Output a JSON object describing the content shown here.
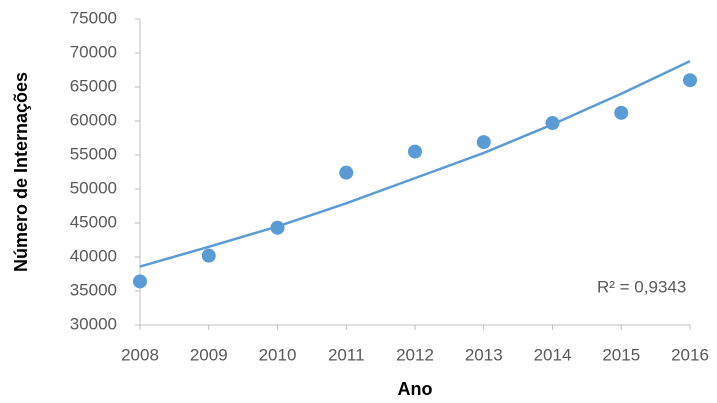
{
  "chart_data": {
    "type": "scatter",
    "x_label": "Ano",
    "y_label": "Número de Internações",
    "x": [
      2008,
      2009,
      2010,
      2011,
      2012,
      2013,
      2014,
      2015,
      2016
    ],
    "values": [
      36400,
      40200,
      44300,
      52400,
      55500,
      56900,
      59700,
      61200,
      66000
    ],
    "color": "#5b9bd5",
    "trendline": {
      "values": [
        38600,
        41500,
        44500,
        47900,
        51600,
        55300,
        59500,
        64000,
        68800
      ],
      "color": "#5b9bd5"
    },
    "annotation": "R² = 0,9343",
    "xlim": [
      2008,
      2016
    ],
    "xticks": [
      2008,
      2009,
      2010,
      2011,
      2012,
      2013,
      2014,
      2015,
      2016
    ],
    "ylim": [
      30000,
      75000
    ],
    "yticks": [
      30000,
      35000,
      40000,
      45000,
      50000,
      55000,
      60000,
      65000,
      70000,
      75000
    ],
    "grid": false
  }
}
